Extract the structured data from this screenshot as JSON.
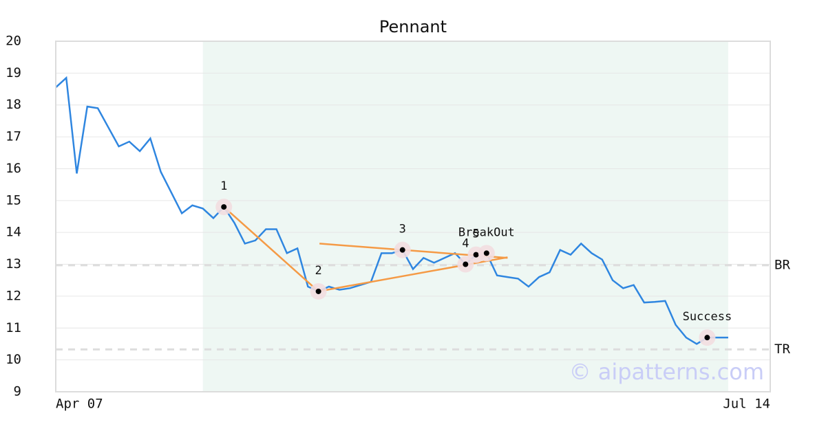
{
  "chart_data": {
    "type": "line",
    "title": "Pennant",
    "x": [
      0,
      1,
      2,
      3,
      4,
      5,
      6,
      7,
      8,
      9,
      10,
      11,
      12,
      13,
      14,
      15,
      16,
      17,
      18,
      19,
      20,
      21,
      22,
      23,
      24,
      25,
      26,
      27,
      28,
      29,
      30,
      31,
      32,
      33,
      34,
      35,
      36,
      37,
      38,
      39,
      40,
      41,
      42,
      43,
      44,
      45,
      46,
      47,
      48,
      49,
      50,
      51,
      52,
      53,
      54,
      55,
      56,
      57,
      58,
      59,
      60,
      61,
      62,
      63,
      64
    ],
    "series": [
      {
        "color": "#2f86e0",
        "values": [
          18.55,
          18.85,
          15.85,
          17.95,
          17.9,
          17.3,
          16.7,
          16.85,
          16.55,
          16.95,
          15.9,
          15.25,
          14.6,
          14.85,
          14.75,
          14.45,
          14.8,
          14.3,
          13.65,
          13.75,
          14.1,
          14.1,
          13.35,
          13.5,
          12.3,
          12.15,
          12.3,
          12.2,
          12.25,
          12.35,
          12.45,
          13.35,
          13.35,
          13.45,
          12.85,
          13.2,
          13.05,
          13.2,
          13.35,
          13.0,
          13.3,
          13.35,
          12.65,
          12.6,
          12.55,
          12.3,
          12.6,
          12.75,
          13.45,
          13.3,
          13.65,
          13.35,
          13.15,
          12.5,
          12.25,
          12.35,
          11.8,
          11.82,
          11.85,
          11.1,
          10.7,
          10.5,
          10.7,
          10.7,
          10.7
        ]
      }
    ],
    "xlim": [
      0,
      68
    ],
    "xticks": [
      {
        "value": 0,
        "label": "Apr 07"
      },
      {
        "value": 68,
        "label": "Jul 14"
      }
    ],
    "ylim": [
      9,
      20
    ],
    "yticks": [
      9,
      10,
      11,
      12,
      13,
      14,
      15,
      16,
      17,
      18,
      19,
      20
    ],
    "grid": true,
    "shade": {
      "x": [
        14,
        64
      ],
      "color": "#eef7f3"
    },
    "trendlines": {
      "color": "#f59a45",
      "lines": [
        {
          "x": [
            16,
            25
          ],
          "y": [
            14.8,
            12.15
          ]
        },
        {
          "x": [
            25.1,
            43
          ],
          "y": [
            13.65,
            13.2
          ]
        },
        {
          "x": [
            25,
            43
          ],
          "y": [
            12.15,
            13.22
          ]
        }
      ]
    },
    "levels": [
      {
        "label": "BR",
        "value": 12.97
      },
      {
        "label": "TR",
        "value": 10.33
      }
    ],
    "points": [
      {
        "label": "1",
        "x": 16,
        "y": 14.8
      },
      {
        "label": "2",
        "x": 25,
        "y": 12.15
      },
      {
        "label": "3",
        "x": 33,
        "y": 13.45
      },
      {
        "label": "4",
        "x": 39,
        "y": 13.0
      },
      {
        "label": "5",
        "x": 40,
        "y": 13.3
      },
      {
        "label": "BreakOut",
        "x": 41,
        "y": 13.35
      },
      {
        "label": "Success",
        "x": 62,
        "y": 10.7
      }
    ],
    "watermark": "© aipatterns.com"
  }
}
